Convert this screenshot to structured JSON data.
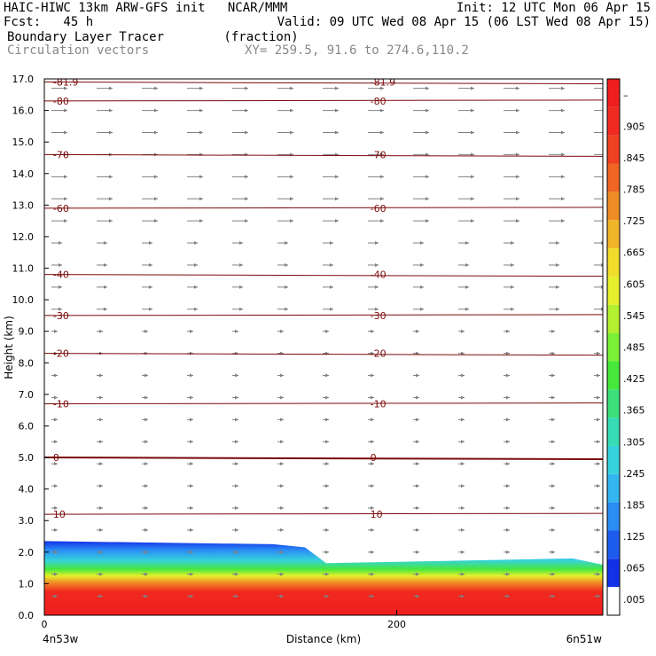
{
  "header": {
    "line1_left": "HAIC-HIWC 13km ARW-GFS init   NCAR/MMM",
    "line1_right": "Init: 12 UTC Mon 06 Apr 15",
    "line2_left": "Fcst:   45 h",
    "line2_right": "Valid: 09 UTC Wed 08 Apr 15 (06 LST Wed 08 Apr 15)",
    "line3_left": "Boundary Layer Tracer        (fraction)",
    "line4_left": "Circulation vectors",
    "line4_mid": "XY= 259.5, 91.6 to 274.6,110.2"
  },
  "colors": {
    "contour": "#7a0a0a",
    "vector": "#808080",
    "colorbar": [
      "#ffffff",
      "#1430e8",
      "#1e5cf0",
      "#2a8cf4",
      "#33b6f0",
      "#36d2dc",
      "#36dcb4",
      "#3ce07a",
      "#46e83c",
      "#7cf034",
      "#b4f030",
      "#e6f02c",
      "#f0dc2a",
      "#f0b428",
      "#f08c26",
      "#f06424",
      "#f04022",
      "#f02a20",
      "#f01e1e"
    ]
  },
  "chart_data": {
    "type": "heatmap",
    "xlabel": "Distance (km)",
    "ylabel": "Height (km)",
    "xlim": [
      0,
      317
    ],
    "ylim": [
      0,
      17
    ],
    "x_ticks": [
      "0",
      "200"
    ],
    "y_ticks": [
      "0.0",
      "1.0",
      "2.0",
      "3.0",
      "4.0",
      "5.0",
      "6.0",
      "7.0",
      "8.0",
      "9.0",
      "10.0",
      "11.0",
      "12.0",
      "13.0",
      "14.0",
      "15.0",
      "16.0",
      "17.0"
    ],
    "x_endpoints": [
      "4n53w",
      "6n51w"
    ],
    "colorbar_labels": [
      ".005",
      ".065",
      ".125",
      ".185",
      ".245",
      ".305",
      ".365",
      ".425",
      ".485",
      ".545",
      ".605",
      ".665",
      ".725",
      ".785",
      ".845",
      ".905",
      "–"
    ],
    "temperature_contours": [
      {
        "label": "10",
        "height_km": 3.2
      },
      {
        "label": "0",
        "height_km": 5.0
      },
      {
        "label": "-10",
        "height_km": 6.7
      },
      {
        "label": "-20",
        "height_km": 8.3
      },
      {
        "label": "-30",
        "height_km": 9.5
      },
      {
        "label": "-40",
        "height_km": 10.8
      },
      {
        "label": "-60",
        "height_km": 12.9
      },
      {
        "label": "-70",
        "height_km": 14.6
      },
      {
        "label": "-80",
        "height_km": 16.3
      },
      {
        "label": "-81.9",
        "height_km": 16.9
      }
    ],
    "tracer_top_km": [
      {
        "x": 0,
        "top": 2.35
      },
      {
        "x": 130,
        "top": 2.25
      },
      {
        "x": 148,
        "top": 2.15
      },
      {
        "x": 160,
        "top": 1.65
      },
      {
        "x": 300,
        "top": 1.8
      },
      {
        "x": 317,
        "top": 1.6
      }
    ]
  }
}
